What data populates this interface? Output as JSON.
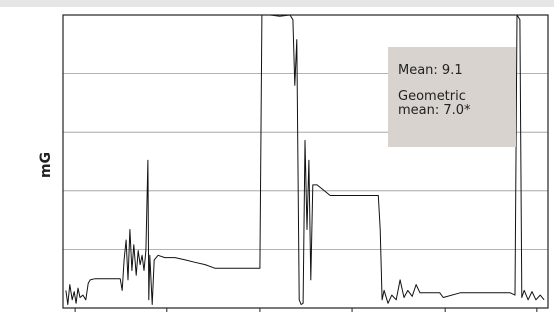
{
  "chart_data": {
    "type": "line",
    "y_label": "mG",
    "annotations": [
      "Mean: 9.1",
      "Geometric mean: 7.0*"
    ],
    "xlim": [
      0,
      100
    ],
    "xticks": [
      2.5,
      21.4,
      40.6,
      59.6,
      78.8,
      97.7
    ],
    "ylim": [
      0,
      25
    ],
    "yticks": [
      5,
      10,
      15,
      20
    ],
    "grid": true,
    "x": [
      0.6,
      1.0,
      1.4,
      1.9,
      2.3,
      2.7,
      3.1,
      3.5,
      4.1,
      4.7,
      5.2,
      5.6,
      6.6,
      9.7,
      11.8,
      12.2,
      12.6,
      13.0,
      13.4,
      13.8,
      14.2,
      14.6,
      15.1,
      15.5,
      15.9,
      16.3,
      16.7,
      17.1,
      17.5,
      17.7,
      17.9,
      18.4,
      18.8,
      19.6,
      21.0,
      23.1,
      25.2,
      27.2,
      29.3,
      31.3,
      33.4,
      36.5,
      39.6,
      40.6,
      41.0,
      42.7,
      44.7,
      46.8,
      47.4,
      47.8,
      48.2,
      48.7,
      49.1,
      49.5,
      49.9,
      50.3,
      50.7,
      51.1,
      51.5,
      52.4,
      55.1,
      65.0,
      65.4,
      65.8,
      66.2,
      67.0,
      67.8,
      68.7,
      69.5,
      70.3,
      71.1,
      72.0,
      72.8,
      73.6,
      77.7,
      78.4,
      81.9,
      88.0,
      92.2,
      93.2,
      93.6,
      94.2,
      94.6,
      95.1,
      95.9,
      96.7,
      97.5,
      98.4,
      99.2
    ],
    "series": [
      {
        "color": "#111111",
        "values": [
          1.5,
          0.3,
          2.0,
          0.7,
          1.4,
          0.4,
          1.7,
          0.9,
          1.1,
          0.7,
          2.1,
          2.4,
          2.5,
          2.5,
          2.5,
          1.5,
          4.1,
          5.8,
          2.4,
          6.7,
          3.2,
          5.4,
          2.8,
          4.9,
          3.7,
          4.5,
          3.2,
          4.9,
          12.6,
          0.7,
          4.5,
          0.3,
          4.1,
          4.5,
          4.3,
          4.3,
          4.1,
          3.9,
          3.7,
          3.4,
          3.4,
          3.4,
          3.4,
          3.4,
          25.0,
          25.0,
          24.9,
          25.0,
          24.6,
          19.0,
          22.9,
          0.7,
          0.3,
          0.4,
          14.3,
          6.7,
          12.6,
          2.4,
          10.5,
          10.5,
          9.6,
          9.6,
          6.7,
          0.7,
          1.5,
          0.4,
          1.1,
          0.7,
          2.4,
          0.9,
          1.5,
          1.0,
          2.0,
          1.3,
          1.3,
          0.9,
          1.3,
          1.3,
          1.3,
          1.1,
          25.0,
          24.6,
          0.9,
          1.5,
          0.7,
          1.4,
          0.7,
          1.1,
          0.7
        ]
      }
    ]
  }
}
